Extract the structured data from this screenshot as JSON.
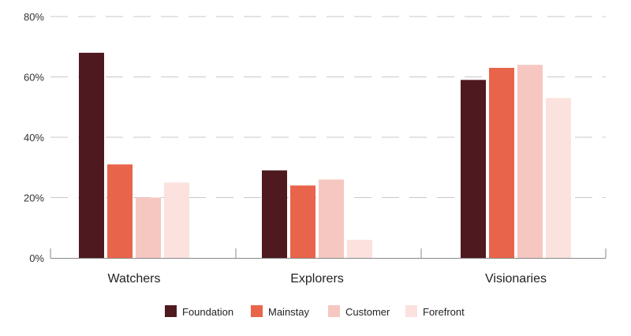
{
  "chart_data": {
    "type": "bar",
    "categories": [
      "Watchers",
      "Explorers",
      "Visionaries"
    ],
    "series": [
      {
        "name": "Foundation",
        "color": "#4e1a1f",
        "values": [
          68,
          29,
          59
        ]
      },
      {
        "name": "Mainstay",
        "color": "#e8644a",
        "values": [
          31,
          24,
          63
        ]
      },
      {
        "name": "Customer",
        "color": "#f6c7c0",
        "values": [
          20,
          26,
          64
        ]
      },
      {
        "name": "Forefront",
        "color": "#fbe2de",
        "values": [
          25,
          6,
          53
        ]
      }
    ],
    "y_ticks": [
      "0%",
      "20%",
      "40%",
      "60%",
      "80%"
    ],
    "ylim": [
      0,
      80
    ],
    "grid": true,
    "legend_position": "bottom-center"
  }
}
